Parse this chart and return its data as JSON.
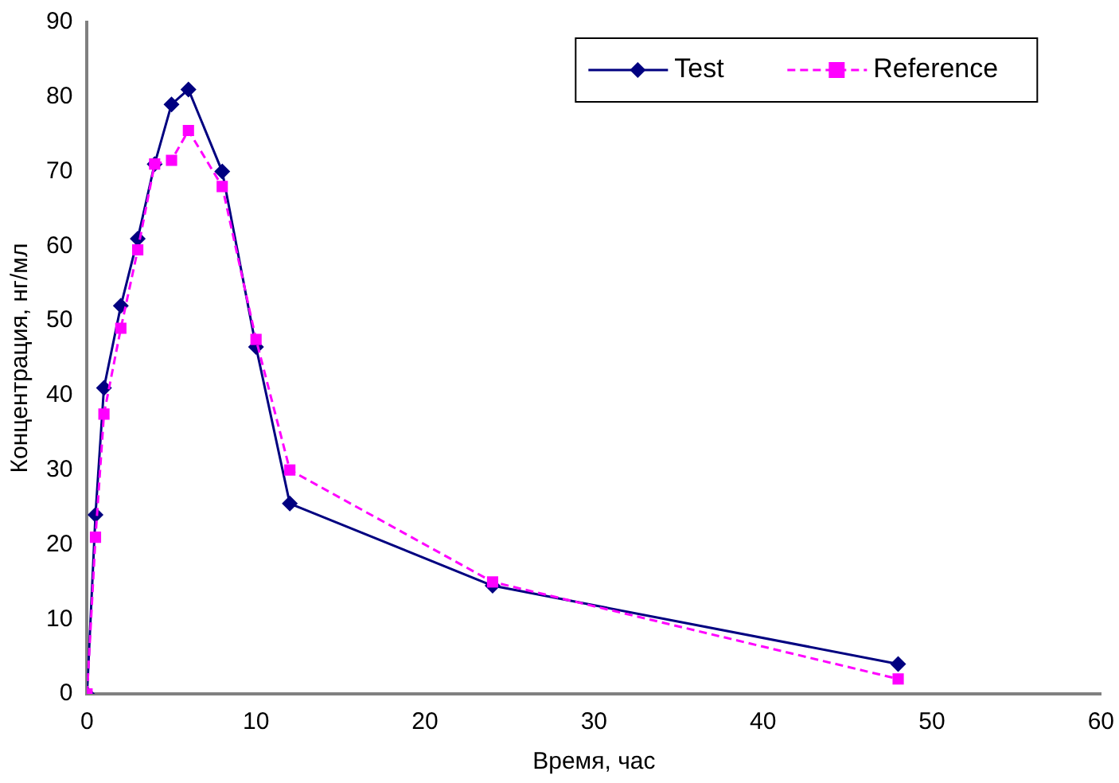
{
  "chart_data": {
    "type": "line",
    "xlabel": "Время, час",
    "ylabel": "Концентрация, нг/мл",
    "x": [
      0,
      0.5,
      1,
      2,
      3,
      4,
      5,
      6,
      8,
      10,
      12,
      24,
      48
    ],
    "series": [
      {
        "name": "Test",
        "color": "#000080",
        "marker": "diamond",
        "line_style": "solid",
        "values": [
          0,
          24,
          41,
          52,
          61,
          71,
          79,
          81,
          70,
          46.5,
          25.5,
          14.5,
          4
        ]
      },
      {
        "name": "Reference",
        "color": "#ff00ff",
        "marker": "square",
        "line_style": "dashed",
        "values": [
          0,
          21,
          37.5,
          49,
          59.5,
          71,
          71.5,
          75.5,
          68,
          47.5,
          30,
          15,
          2
        ]
      }
    ],
    "xlim": [
      0,
      60
    ],
    "xticks": [
      0,
      10,
      20,
      30,
      40,
      50,
      60
    ],
    "ylim": [
      0,
      90
    ],
    "yticks": [
      0,
      10,
      20,
      30,
      40,
      50,
      60,
      70,
      80,
      90
    ],
    "grid": false,
    "legend": "top right"
  }
}
